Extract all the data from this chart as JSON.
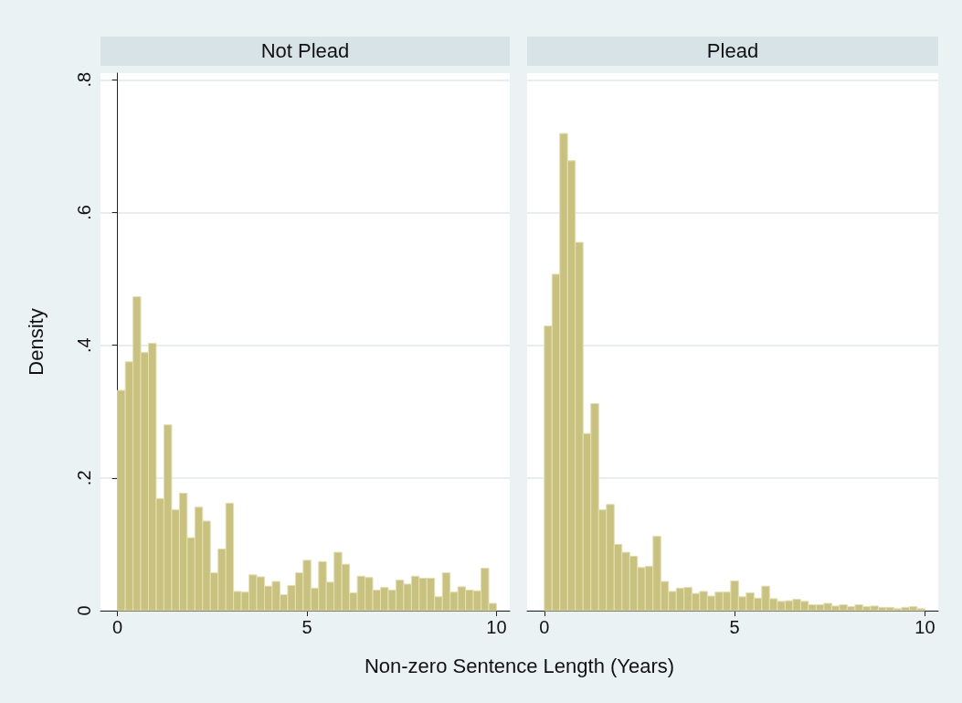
{
  "chart_data": [
    {
      "type": "histogram",
      "title": "Not Plead",
      "ylabel": "Density",
      "xlabel": "Non-zero Sentence Length (Years)",
      "color": "#c9c27f",
      "bins": [
        0,
        0.204,
        0.408,
        0.612,
        0.816,
        1.02,
        1.224,
        1.429,
        1.633,
        1.837,
        2.041,
        2.245,
        2.449,
        2.653,
        2.857,
        3.061,
        3.265,
        3.469,
        3.673,
        3.878,
        4.082,
        4.286,
        4.49,
        4.694,
        4.898,
        5.102,
        5.306,
        5.51,
        5.714,
        5.918,
        6.122,
        6.327,
        6.531,
        6.735,
        6.939,
        7.143,
        7.347,
        7.551,
        7.755,
        7.959,
        8.163,
        8.367,
        8.571,
        8.776,
        8.98,
        9.184,
        9.388,
        9.592,
        9.796,
        10
      ],
      "values": [
        0.332,
        0.375,
        0.473,
        0.389,
        0.403,
        0.169,
        0.28,
        0.152,
        0.177,
        0.11,
        0.156,
        0.135,
        0.057,
        0.093,
        0.162,
        0.029,
        0.028,
        0.054,
        0.051,
        0.037,
        0.044,
        0.024,
        0.038,
        0.057,
        0.076,
        0.034,
        0.074,
        0.043,
        0.088,
        0.07,
        0.027,
        0.052,
        0.05,
        0.031,
        0.035,
        0.031,
        0.046,
        0.04,
        0.052,
        0.049,
        0.049,
        0.021,
        0.057,
        0.028,
        0.036,
        0.031,
        0.03,
        0.064,
        0.011
      ],
      "xlim": [
        -0.45,
        10.35
      ],
      "xticks": [
        0,
        5,
        10
      ],
      "ylim": [
        0,
        0.81
      ],
      "yticks": [
        0,
        {
          "value": 0.2,
          "label": ".2"
        },
        {
          "value": 0.4,
          "label": ".4"
        },
        {
          "value": 0.6,
          "label": ".6"
        },
        {
          "value": 0.8,
          "label": ".8"
        }
      ],
      "grid": "y"
    },
    {
      "type": "histogram",
      "title": "Plead",
      "color": "#c9c27f",
      "bins": [
        0,
        0.204,
        0.408,
        0.612,
        0.816,
        1.02,
        1.224,
        1.429,
        1.633,
        1.837,
        2.041,
        2.245,
        2.449,
        2.653,
        2.857,
        3.061,
        3.265,
        3.469,
        3.673,
        3.878,
        4.082,
        4.286,
        4.49,
        4.694,
        4.898,
        5.102,
        5.306,
        5.51,
        5.714,
        5.918,
        6.122,
        6.327,
        6.531,
        6.735,
        6.939,
        7.143,
        7.347,
        7.551,
        7.755,
        7.959,
        8.163,
        8.367,
        8.571,
        8.776,
        8.98,
        9.184,
        9.388,
        9.592,
        9.796,
        10
      ],
      "values": [
        0.429,
        0.507,
        0.719,
        0.678,
        0.555,
        0.267,
        0.312,
        0.152,
        0.16,
        0.1,
        0.088,
        0.082,
        0.065,
        0.067,
        0.112,
        0.044,
        0.029,
        0.034,
        0.035,
        0.026,
        0.029,
        0.022,
        0.028,
        0.028,
        0.045,
        0.021,
        0.027,
        0.019,
        0.037,
        0.018,
        0.014,
        0.015,
        0.017,
        0.014,
        0.009,
        0.009,
        0.011,
        0.007,
        0.009,
        0.006,
        0.009,
        0.006,
        0.007,
        0.005,
        0.005,
        0.003,
        0.005,
        0.006,
        0.003
      ],
      "xlim": [
        -0.45,
        10.35
      ],
      "xticks": [
        0,
        5,
        10
      ],
      "ylim": [
        0,
        0.81
      ],
      "yticks": [
        {
          "value": 0,
          "label": null
        },
        {
          "value": 0.2,
          "label": null
        },
        {
          "value": 0.4,
          "label": null
        },
        {
          "value": 0.6,
          "label": null
        },
        {
          "value": 0.8,
          "label": null
        }
      ],
      "grid": "y",
      "tick_labels": "x"
    }
  ]
}
